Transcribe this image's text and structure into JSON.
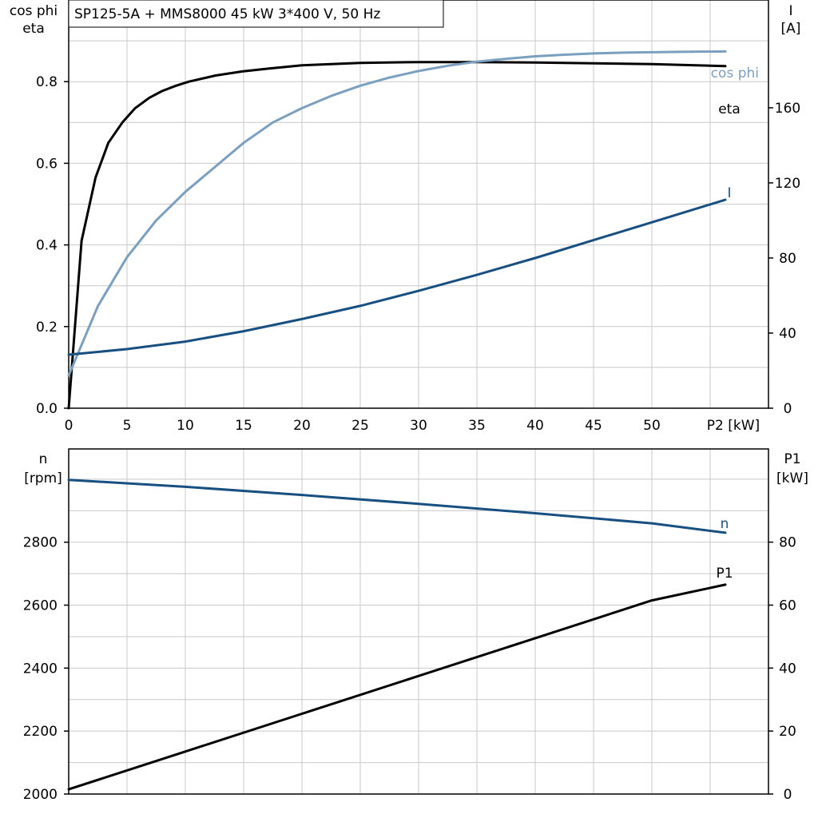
{
  "title": "SP125-5A + MMS8000   45 kW   3*400 V, 50 Hz",
  "colors": {
    "black": "#000000",
    "light_blue": "#7a9fbf",
    "dark_blue": "#174f80",
    "grid": "#c8c8c8"
  },
  "chart_data": [
    {
      "type": "line",
      "name": "efficiency-current-chart",
      "xlabel": "P2 [kW]",
      "xlim": [
        0,
        60
      ],
      "x_ticks": [
        "0",
        "5",
        "10",
        "15",
        "20",
        "25",
        "30",
        "35",
        "40",
        "45",
        "50"
      ],
      "ylabel_left_line1": "cos phi",
      "ylabel_left_line2": "eta",
      "ylim_left": [
        0,
        1
      ],
      "y_ticks_left": [
        "0.0",
        "0.2",
        "0.4",
        "0.6",
        "0.8"
      ],
      "ylabel_right_line1": "I",
      "ylabel_right_line2": "[A]",
      "ylim_right": [
        0,
        217.4
      ],
      "y_ticks_right": [
        "0",
        "40",
        "80",
        "120",
        "160"
      ],
      "grid": true,
      "series": [
        {
          "name": "eta",
          "axis": "left",
          "color": "#000000",
          "x": [
            0,
            1.1,
            2.3,
            3.4,
            4.6,
            5.7,
            6.9,
            8.0,
            9.2,
            10.3,
            12.6,
            14.9,
            17.2,
            20.0,
            25.0,
            30.0,
            35.0,
            40.0,
            45.0,
            50.0,
            56.3
          ],
          "y": [
            0.0,
            0.41,
            0.565,
            0.65,
            0.7,
            0.735,
            0.76,
            0.777,
            0.79,
            0.8,
            0.815,
            0.825,
            0.832,
            0.84,
            0.846,
            0.848,
            0.848,
            0.847,
            0.845,
            0.843,
            0.838
          ]
        },
        {
          "name": "cos phi",
          "axis": "left",
          "color": "#7a9fbf",
          "x": [
            0,
            2.5,
            5.0,
            7.5,
            10.0,
            12.5,
            15.0,
            17.5,
            20.0,
            22.5,
            25.0,
            27.5,
            30.0,
            32.5,
            35.0,
            37.5,
            40.0,
            42.5,
            45.0,
            47.5,
            50.0,
            52.5,
            56.3
          ],
          "y": [
            0.08,
            0.25,
            0.37,
            0.46,
            0.53,
            0.59,
            0.65,
            0.7,
            0.735,
            0.765,
            0.79,
            0.81,
            0.826,
            0.839,
            0.849,
            0.856,
            0.862,
            0.866,
            0.869,
            0.871,
            0.872,
            0.873,
            0.874
          ]
        },
        {
          "name": "I",
          "axis": "right",
          "color": "#174f80",
          "x": [
            0,
            5,
            10,
            15,
            20,
            25,
            30,
            35,
            40,
            45,
            50,
            56.3
          ],
          "y": [
            28.5,
            31.5,
            35.5,
            41,
            47.5,
            54.5,
            62.5,
            71,
            80,
            89.5,
            99,
            111
          ]
        }
      ],
      "labels": {
        "eta": "eta",
        "cos_phi": "cos phi",
        "I": "I"
      }
    },
    {
      "type": "line",
      "name": "speed-power-chart",
      "xlim": [
        0,
        60
      ],
      "ylabel_left_line1": "n",
      "ylabel_left_line2": "[rpm]",
      "ylim_left": [
        2000,
        3096.2
      ],
      "y_ticks_left": [
        "2000",
        "2200",
        "2400",
        "2600",
        "2800"
      ],
      "ylabel_right_line1": "P1",
      "ylabel_right_line2": "[kW]",
      "ylim_right": [
        0,
        109.6
      ],
      "y_ticks_right": [
        "0",
        "20",
        "40",
        "60",
        "80"
      ],
      "grid": true,
      "series": [
        {
          "name": "n",
          "axis": "left",
          "color": "#174f80",
          "x": [
            0,
            10,
            20,
            30,
            40,
            50,
            56.3
          ],
          "y": [
            2998,
            2976,
            2950,
            2922,
            2892,
            2860,
            2830
          ]
        },
        {
          "name": "P1",
          "axis": "right",
          "color": "#000000",
          "x": [
            0,
            10,
            20,
            30,
            40,
            50,
            56.3
          ],
          "y": [
            1.5,
            13.5,
            25.5,
            37.5,
            49.5,
            61.5,
            66.5
          ]
        }
      ],
      "labels": {
        "n": "n",
        "P1": "P1"
      }
    }
  ]
}
